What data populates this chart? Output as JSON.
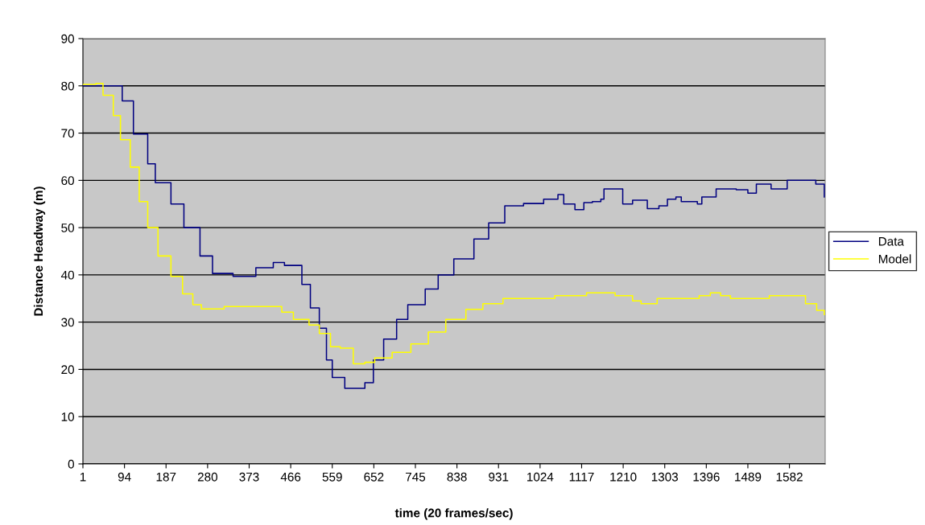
{
  "chart_data": {
    "type": "step",
    "xlabel": "time (20 frames/sec)",
    "ylabel": "Distance Headway (m)",
    "xlim": [
      1,
      1662
    ],
    "xticks": [
      1,
      94,
      187,
      280,
      373,
      466,
      559,
      652,
      745,
      838,
      931,
      1024,
      1117,
      1210,
      1303,
      1396,
      1489,
      1582
    ],
    "ylim": [
      0,
      90
    ],
    "yticks": [
      0,
      10,
      20,
      30,
      40,
      50,
      60,
      70,
      80,
      90
    ],
    "grid": "y",
    "legend": "right",
    "line_style": "solid",
    "marker": "none",
    "series": [
      {
        "name": "Data",
        "color": "#000080",
        "x": [
          1,
          59,
          89,
          114,
          146,
          163,
          198,
          227,
          263,
          291,
          337,
          388,
          427,
          452,
          491,
          510,
          530,
          546,
          559,
          587,
          616,
          632,
          651,
          674,
          703,
          728,
          767,
          796,
          831,
          876,
          909,
          945,
          987,
          1032,
          1064,
          1077,
          1102,
          1122,
          1141,
          1160,
          1167,
          1206,
          1209,
          1231,
          1264,
          1290,
          1309,
          1328,
          1340,
          1376,
          1386,
          1418,
          1463,
          1489,
          1508,
          1541,
          1577,
          1618,
          1641,
          1660
        ],
        "values": [
          80,
          80,
          76.8,
          69.8,
          63.5,
          59.5,
          55,
          50,
          44,
          40.3,
          39.7,
          41.5,
          42.6,
          42,
          38,
          33,
          28.7,
          22,
          18.3,
          16,
          16,
          17.2,
          22,
          26.4,
          30.6,
          33.7,
          37,
          40,
          43.4,
          47.6,
          51,
          54.6,
          55.1,
          56,
          57,
          55,
          53.8,
          55.3,
          55.5,
          56,
          58.2,
          58.2,
          55,
          55.8,
          54,
          54.6,
          56,
          56.5,
          55.5,
          55,
          56.5,
          58.2,
          58,
          57.3,
          59.2,
          58.2,
          60,
          60,
          59.2,
          56.5
        ]
      },
      {
        "name": "Model",
        "color": "#ffff00",
        "x": [
          1,
          30,
          46,
          69,
          85,
          107,
          127,
          146,
          169,
          198,
          224,
          247,
          266,
          317,
          420,
          446,
          472,
          507,
          530,
          555,
          577,
          606,
          632,
          654,
          693,
          735,
          774,
          813,
          858,
          896,
          941,
          1051,
          1057,
          1125,
          1128,
          1190,
          1192,
          1231,
          1250,
          1286,
          1380,
          1405,
          1428,
          1450,
          1537,
          1586,
          1618,
          1643,
          1660
        ],
        "values": [
          80.3,
          80.5,
          78,
          73.7,
          68.6,
          62.8,
          55.5,
          50,
          44,
          39.7,
          36,
          33.7,
          32.8,
          33.3,
          33.3,
          32.1,
          30.6,
          29.4,
          27.6,
          24.8,
          24.5,
          21.2,
          21.5,
          22.4,
          23.6,
          25.4,
          27.9,
          30.6,
          32.7,
          33.9,
          35,
          35,
          35.6,
          35.6,
          36.2,
          36.2,
          35.6,
          34.5,
          33.9,
          35,
          35.6,
          36.2,
          35.6,
          35,
          35.6,
          35.6,
          33.9,
          32.5,
          31.6
        ]
      }
    ]
  }
}
